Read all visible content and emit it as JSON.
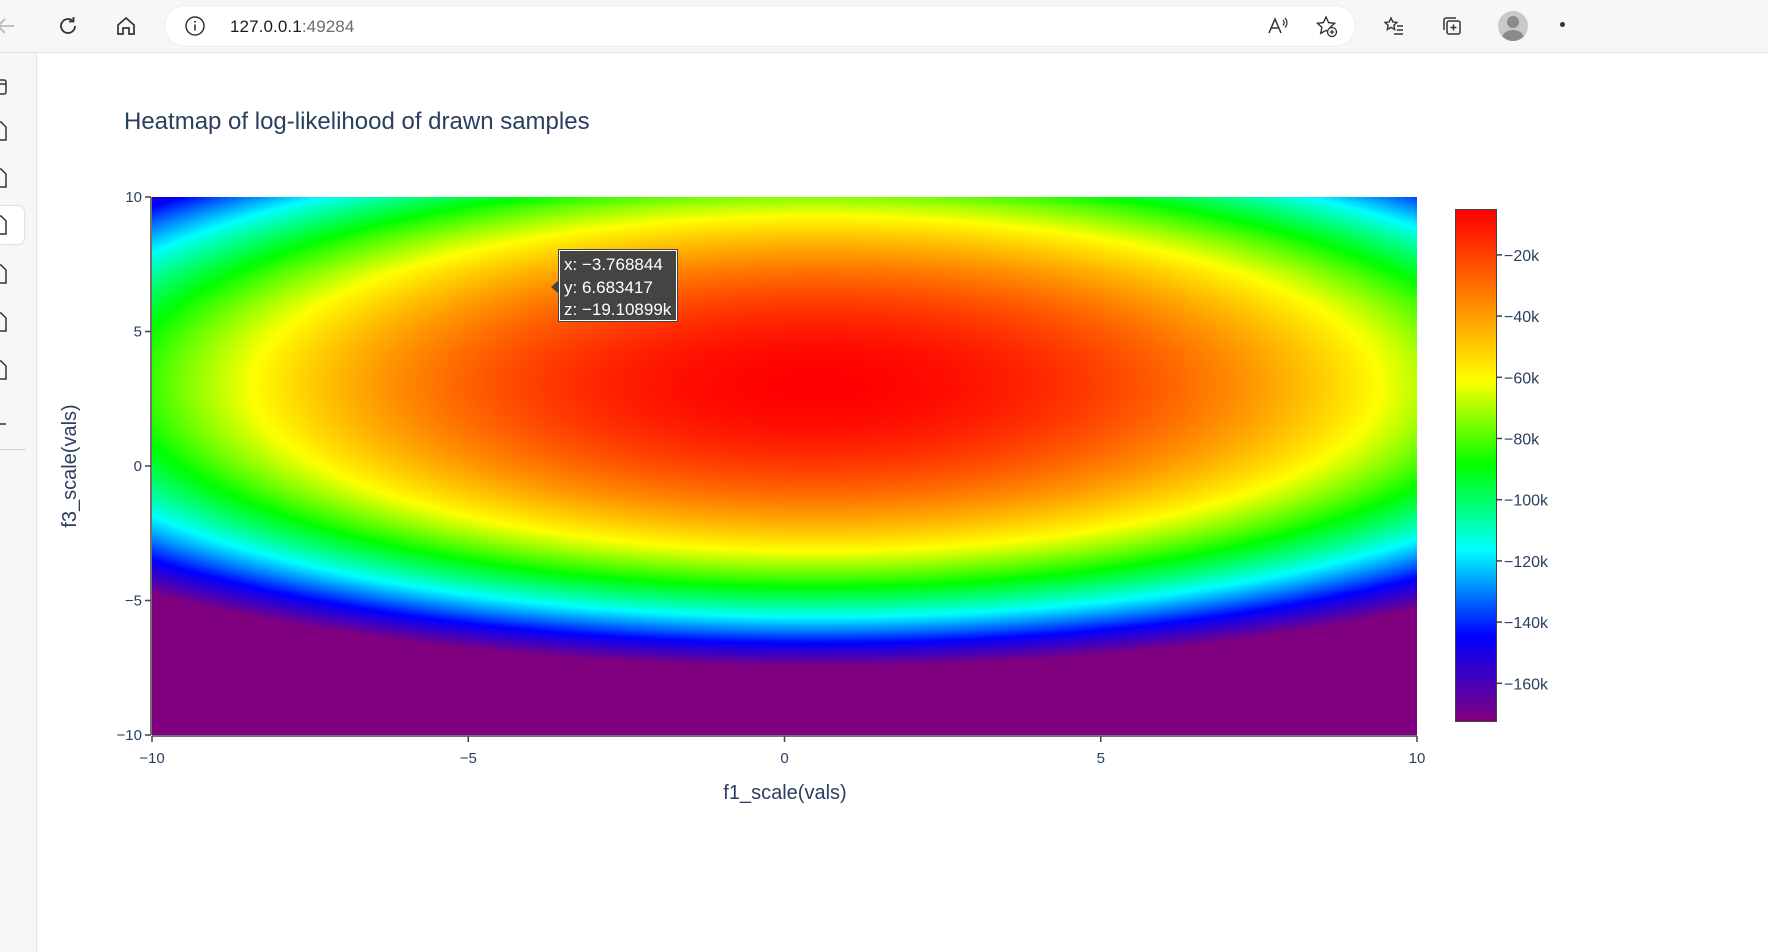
{
  "browser": {
    "url_host": "127.0.0.1",
    "url_port": ":49284",
    "icons": [
      "back-icon",
      "refresh-icon",
      "home-icon",
      "info-icon",
      "read-aloud-icon",
      "add-favorite-icon",
      "favorites-icon",
      "collections-icon",
      "profile-avatar",
      "more-icon"
    ]
  },
  "sidebar": {
    "items": [
      "tab-icon",
      "page-icon",
      "page-icon",
      "page-icon",
      "page-icon",
      "page-icon",
      "page-icon",
      "add-icon"
    ]
  },
  "chart_data": {
    "type": "heatmap",
    "title": "Heatmap of log-likelihood of drawn samples",
    "xlabel": "f1_scale(vals)",
    "ylabel": "f3_scale(vals)",
    "xlim": [
      -10,
      10
    ],
    "ylim": [
      -10,
      10
    ],
    "x_ticks": [
      "−10",
      "−5",
      "0",
      "5",
      "10"
    ],
    "y_ticks": [
      "10",
      "5",
      "0",
      "−5",
      "−10"
    ],
    "x_tick_values": [
      -10,
      -5,
      0,
      5,
      10
    ],
    "y_tick_values": [
      10,
      5,
      0,
      -5,
      -10
    ],
    "zlim": [
      -172000,
      -5000
    ],
    "z_peak": {
      "x": 0.5,
      "y": 3,
      "z": -5000
    },
    "colorscale": [
      "#800080",
      "#0000ff",
      "#00ffff",
      "#00ff00",
      "#ffff00",
      "#ff8000",
      "#ff0000"
    ],
    "colorbar": {
      "tick_labels": [
        "−20k",
        "−40k",
        "−60k",
        "−80k",
        "−100k",
        "−120k",
        "−140k",
        "−160k"
      ],
      "tick_values": [
        -20000,
        -40000,
        -60000,
        -80000,
        -100000,
        -120000,
        -140000,
        -160000
      ]
    },
    "hover": {
      "x_text": "x: −3.768844",
      "y_text": "y: 6.683417",
      "z_text": "z: −19.10899k"
    }
  }
}
